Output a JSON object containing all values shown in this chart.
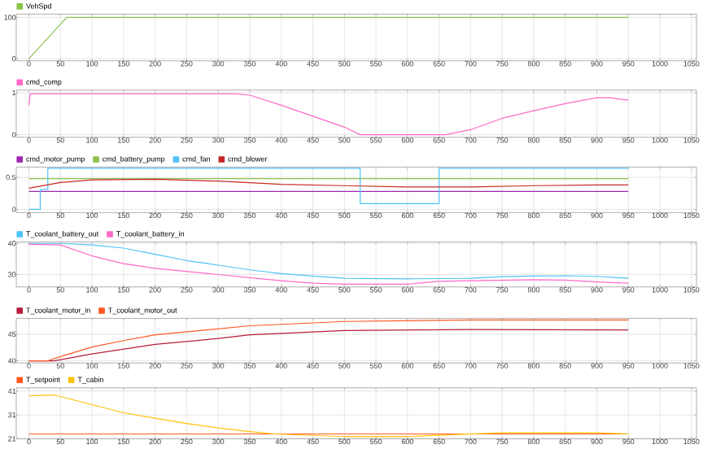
{
  "chart_data": [
    {
      "type": "line",
      "xlim": [
        -20,
        1058
      ],
      "ylim": [
        -5,
        108
      ],
      "xticks": [
        0,
        50,
        100,
        150,
        200,
        250,
        300,
        350,
        400,
        450,
        500,
        550,
        600,
        650,
        700,
        750,
        800,
        850,
        900,
        950,
        1000,
        1050
      ],
      "yticks": [
        0,
        100
      ],
      "grid": true,
      "legend": "top left",
      "marker": "none",
      "series": [
        {
          "name": "VehSpd",
          "color": "#8bc34a",
          "x": [
            0,
            60,
            950
          ],
          "values": [
            0,
            100,
            100
          ]
        }
      ]
    },
    {
      "type": "line",
      "xlim": [
        -20,
        1058
      ],
      "ylim": [
        -0.06,
        1.06
      ],
      "xticks": [
        0,
        50,
        100,
        150,
        200,
        250,
        300,
        350,
        400,
        450,
        500,
        550,
        600,
        650,
        700,
        750,
        800,
        850,
        900,
        950,
        1000,
        1050
      ],
      "yticks": [
        0,
        1
      ],
      "grid": true,
      "legend": "top left",
      "marker": "none",
      "series": [
        {
          "name": "cmd_comp",
          "color": "#ff69c8",
          "x": [
            0,
            2,
            330,
            350,
            400,
            450,
            500,
            525,
            660,
            700,
            750,
            800,
            850,
            900,
            920,
            950
          ],
          "values": [
            0.7,
            0.97,
            0.97,
            0.94,
            0.7,
            0.44,
            0.18,
            0,
            0,
            0.12,
            0.39,
            0.57,
            0.74,
            0.88,
            0.88,
            0.82
          ]
        }
      ]
    },
    {
      "type": "line",
      "xlim": [
        -20,
        1058
      ],
      "ylim": [
        -0.05,
        0.66
      ],
      "xticks": [
        0,
        50,
        100,
        150,
        200,
        250,
        300,
        350,
        400,
        450,
        500,
        550,
        600,
        650,
        700,
        750,
        800,
        850,
        900,
        950,
        1000,
        1050
      ],
      "yticks": [
        0,
        0.5
      ],
      "grid": true,
      "legend": "top left",
      "marker": "none",
      "series": [
        {
          "name": "cmd_motor_pump",
          "color": "#9c27b0",
          "x": [
            0,
            950
          ],
          "values": [
            0.28,
            0.28
          ]
        },
        {
          "name": "cmd_battery_pump",
          "color": "#8bc34a",
          "x": [
            0,
            950
          ],
          "values": [
            0.48,
            0.48
          ]
        },
        {
          "name": "cmd_fan",
          "color": "#4fc3f7",
          "x": [
            0,
            18,
            18,
            30,
            30,
            525,
            525,
            650,
            650,
            950
          ],
          "values": [
            0,
            0,
            0.31,
            0.31,
            0.64,
            0.64,
            0.09,
            0.09,
            0.64,
            0.64
          ]
        },
        {
          "name": "cmd_blower",
          "color": "#c62828",
          "x": [
            0,
            50,
            100,
            200,
            300,
            400,
            500,
            600,
            700,
            800,
            900,
            950
          ],
          "values": [
            0.33,
            0.42,
            0.46,
            0.47,
            0.44,
            0.39,
            0.37,
            0.35,
            0.35,
            0.37,
            0.38,
            0.38
          ]
        }
      ]
    },
    {
      "type": "line",
      "xlim": [
        -20,
        1058
      ],
      "ylim": [
        26,
        40.5
      ],
      "xticks": [
        0,
        50,
        100,
        150,
        200,
        250,
        300,
        350,
        400,
        450,
        500,
        550,
        600,
        650,
        700,
        750,
        800,
        850,
        900,
        950,
        1000,
        1050
      ],
      "yticks": [
        30,
        40
      ],
      "grid": true,
      "legend": "top left",
      "marker": "none",
      "series": [
        {
          "name": "T_coolant_battery_out",
          "color": "#4fc3f7",
          "x": [
            0,
            50,
            100,
            150,
            200,
            250,
            300,
            350,
            400,
            450,
            500,
            600,
            700,
            750,
            800,
            850,
            900,
            950
          ],
          "values": [
            40,
            40,
            39.5,
            38.5,
            36.5,
            34.5,
            33,
            31.5,
            30.3,
            29.5,
            28.8,
            28.6,
            28.8,
            29.3,
            29.5,
            29.6,
            29.4,
            28.8
          ]
        },
        {
          "name": "T_coolant_battery_in",
          "color": "#ff69c8",
          "x": [
            0,
            50,
            100,
            150,
            200,
            250,
            300,
            350,
            400,
            450,
            500,
            600,
            650,
            700,
            800,
            850,
            900,
            950
          ],
          "values": [
            39.7,
            39.5,
            36,
            33.5,
            32,
            31,
            30,
            29,
            28,
            27.2,
            26.9,
            26.9,
            27.8,
            28,
            28.3,
            28.2,
            27.6,
            27.2
          ]
        }
      ]
    },
    {
      "type": "line",
      "xlim": [
        -20,
        1058
      ],
      "ylim": [
        39.6,
        48
      ],
      "xticks": [
        0,
        50,
        100,
        150,
        200,
        250,
        300,
        350,
        400,
        450,
        500,
        550,
        600,
        650,
        700,
        750,
        800,
        850,
        900,
        950,
        1000,
        1050
      ],
      "yticks": [
        40,
        45
      ],
      "grid": true,
      "legend": "top left",
      "marker": "none",
      "series": [
        {
          "name": "T_coolant_motor_in",
          "color": "#b71c3c",
          "x": [
            0,
            40,
            100,
            200,
            300,
            350,
            500,
            700,
            950
          ],
          "values": [
            40,
            40,
            41.3,
            43.1,
            44.2,
            44.9,
            45.7,
            45.9,
            45.8
          ]
        },
        {
          "name": "T_coolant_motor_out",
          "color": "#ff5722",
          "x": [
            0,
            30,
            50,
            100,
            150,
            200,
            350,
            500,
            700,
            950
          ],
          "values": [
            40,
            40,
            40.8,
            42.6,
            43.8,
            44.9,
            46.6,
            47.4,
            47.7,
            47.7
          ]
        }
      ]
    },
    {
      "type": "line",
      "xlim": [
        -20,
        1058
      ],
      "ylim": [
        21,
        42.4
      ],
      "xticks": [
        0,
        50,
        100,
        150,
        200,
        250,
        300,
        350,
        400,
        450,
        500,
        550,
        600,
        650,
        700,
        750,
        800,
        850,
        900,
        950,
        1000,
        1050
      ],
      "yticks": [
        21,
        31,
        41
      ],
      "grid": true,
      "legend": "top left",
      "marker": "none",
      "series": [
        {
          "name": "T_setpoint",
          "color": "#ff5722",
          "x": [
            0,
            950
          ],
          "values": [
            23,
            23
          ]
        },
        {
          "name": "T_cabin",
          "color": "#ffc107",
          "x": [
            0,
            40,
            100,
            150,
            200,
            250,
            300,
            350,
            390,
            500,
            600,
            680,
            750,
            900,
            950
          ],
          "values": [
            39,
            39.4,
            35.3,
            31.9,
            29.6,
            27.4,
            25.5,
            24,
            23,
            21.9,
            21.9,
            22.8,
            23.5,
            23.5,
            23
          ]
        }
      ]
    }
  ]
}
